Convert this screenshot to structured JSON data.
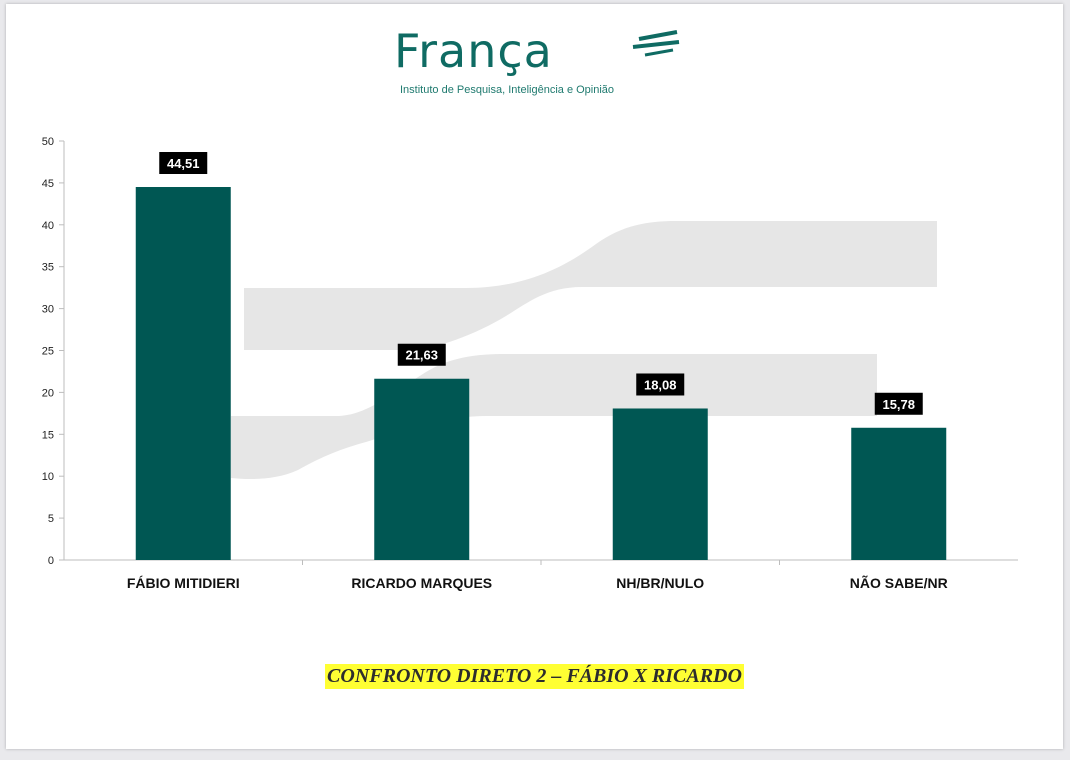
{
  "logo": {
    "name": "França",
    "tagline": "Instituto de Pesquisa, Inteligência e Opinião"
  },
  "caption": "CONFRONTO DIRETO 2 – FÁBIO X RICARDO",
  "colors": {
    "bar": "#005753",
    "label_bg": "#000000",
    "logo": "#0f6b63",
    "caption_highlight": "#ffff33",
    "watermark": "#e6e6e6"
  },
  "chart_data": {
    "type": "bar",
    "categories": [
      "FÁBIO MITIDIERI",
      "RICARDO MARQUES",
      "NH/BR/NULO",
      "NÃO SABE/NR"
    ],
    "values": [
      44.51,
      21.63,
      18.08,
      15.78
    ],
    "data_labels": [
      "44,51",
      "21,63",
      "18,08",
      "15,78"
    ],
    "ylim": [
      0,
      50
    ],
    "yticks": [
      0,
      5,
      10,
      15,
      20,
      25,
      30,
      35,
      40,
      45,
      50
    ],
    "grid": false,
    "title": "",
    "xlabel": "",
    "ylabel": ""
  }
}
